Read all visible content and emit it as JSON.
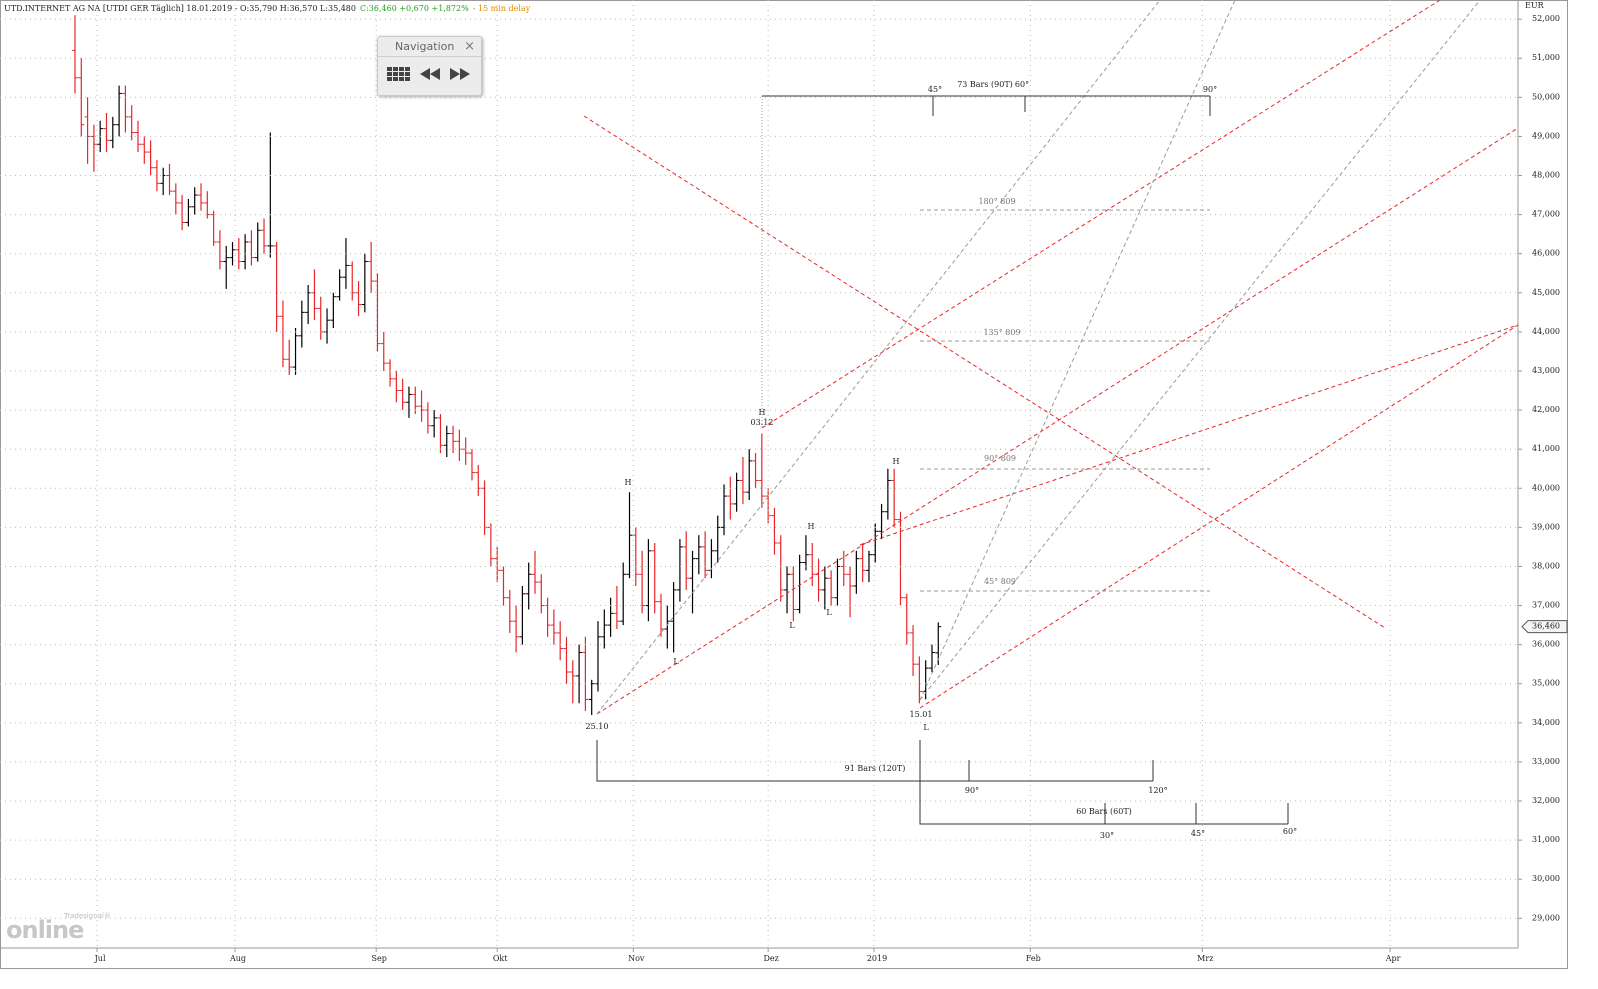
{
  "chart_data": {
    "type": "ohlc",
    "header": {
      "symbol": "UTD.INTERNET AG NA [UTDI GER Täglich] 18.01.2019 - O:35,790 H:36,570 L:35,480",
      "change": "C:36,460 +0,670 +1,872%",
      "delay": "- 15 min delay"
    },
    "y_unit": "EUR",
    "up_color": "#000000",
    "down_color": "#e8262a",
    "grid": true,
    "last_price": {
      "value": 36.46,
      "label": "36,460"
    },
    "xlim": [
      -11.9,
      229
    ],
    "xticks": [
      {
        "value": 3.5,
        "label": "Jul"
      },
      {
        "value": 25.4,
        "label": "Aug"
      },
      {
        "value": 47.8,
        "label": "Sep"
      },
      {
        "value": 67,
        "label": "Okt"
      },
      {
        "value": 88.6,
        "label": "Nov"
      },
      {
        "value": 110,
        "label": "Dez"
      },
      {
        "value": 126.8,
        "label": "2019"
      },
      {
        "value": 151.6,
        "label": "Feb"
      },
      {
        "value": 178.9,
        "label": "Mrz"
      },
      {
        "value": 208.7,
        "label": "Apr"
      }
    ],
    "ylim": [
      28.24,
      52.49
    ],
    "yticks": [
      {
        "value": 29,
        "label": "29,000"
      },
      {
        "value": 30,
        "label": "30,000"
      },
      {
        "value": 31,
        "label": "31,000"
      },
      {
        "value": 32,
        "label": "32,000"
      },
      {
        "value": 33,
        "label": "33,000"
      },
      {
        "value": 34,
        "label": "34,000"
      },
      {
        "value": 35,
        "label": "35,000"
      },
      {
        "value": 36,
        "label": "36,000"
      },
      {
        "value": 37,
        "label": "37,000"
      },
      {
        "value": 38,
        "label": "38,000"
      },
      {
        "value": 39,
        "label": "39,000"
      },
      {
        "value": 40,
        "label": "40,000"
      },
      {
        "value": 41,
        "label": "41,000"
      },
      {
        "value": 42,
        "label": "42,000"
      },
      {
        "value": 43,
        "label": "43,000"
      },
      {
        "value": 44,
        "label": "44,000"
      },
      {
        "value": 45,
        "label": "45,000"
      },
      {
        "value": 46,
        "label": "46,000"
      },
      {
        "value": 47,
        "label": "47,000"
      },
      {
        "value": 48,
        "label": "48,000"
      },
      {
        "value": 49,
        "label": "49,000"
      },
      {
        "value": 50,
        "label": "50,000"
      },
      {
        "value": 51,
        "label": "51,000"
      },
      {
        "value": 52,
        "label": "52,000"
      }
    ],
    "ohlc": [
      [
        51.2,
        52.1,
        50.1,
        50.5
      ],
      [
        50.5,
        51.0,
        49.0,
        49.3
      ],
      [
        49.5,
        50.0,
        48.3,
        49.0
      ],
      [
        49.0,
        49.3,
        48.1,
        48.8
      ],
      [
        48.8,
        49.4,
        48.6,
        49.2
      ],
      [
        49.2,
        49.6,
        48.6,
        48.9
      ],
      [
        48.9,
        49.5,
        48.7,
        49.3
      ],
      [
        49.3,
        50.3,
        49.0,
        50.1
      ],
      [
        50.1,
        50.3,
        49.1,
        49.5
      ],
      [
        49.5,
        49.8,
        48.9,
        49.1
      ],
      [
        49.1,
        49.4,
        48.6,
        48.8
      ],
      [
        48.8,
        49.0,
        48.3,
        48.6
      ],
      [
        48.6,
        48.9,
        48.0,
        48.2
      ],
      [
        48.2,
        48.4,
        47.6,
        47.8
      ],
      [
        47.8,
        48.2,
        47.5,
        48.0
      ],
      [
        48.0,
        48.3,
        47.5,
        47.6
      ],
      [
        47.6,
        47.8,
        47.0,
        47.3
      ],
      [
        47.3,
        47.5,
        46.6,
        46.8
      ],
      [
        46.8,
        47.4,
        46.7,
        47.2
      ],
      [
        47.2,
        47.7,
        47.0,
        47.5
      ],
      [
        47.5,
        47.8,
        47.1,
        47.3
      ],
      [
        47.3,
        47.6,
        46.9,
        47.0
      ],
      [
        47.0,
        47.1,
        46.2,
        46.3
      ],
      [
        46.3,
        46.6,
        45.6,
        45.8
      ],
      [
        45.8,
        46.2,
        45.1,
        45.9
      ],
      [
        45.9,
        46.3,
        45.7,
        46.1
      ],
      [
        46.1,
        46.4,
        45.6,
        45.8
      ],
      [
        45.8,
        46.5,
        45.6,
        46.3
      ],
      [
        46.3,
        46.6,
        45.7,
        45.9
      ],
      [
        45.9,
        46.8,
        45.8,
        46.6
      ],
      [
        46.6,
        46.9,
        46.0,
        46.2
      ],
      [
        46.2,
        49.1,
        45.9,
        46.2
      ],
      [
        46.2,
        46.3,
        44.0,
        44.4
      ],
      [
        44.4,
        44.8,
        43.1,
        43.3
      ],
      [
        43.3,
        43.8,
        42.9,
        43.1
      ],
      [
        43.1,
        44.1,
        42.9,
        43.9
      ],
      [
        43.9,
        44.8,
        43.6,
        44.5
      ],
      [
        44.5,
        45.2,
        44.2,
        45.0
      ],
      [
        45.0,
        45.6,
        44.3,
        44.6
      ],
      [
        44.6,
        44.9,
        43.8,
        44.0
      ],
      [
        44.0,
        44.6,
        43.7,
        44.3
      ],
      [
        44.3,
        45.0,
        44.1,
        44.9
      ],
      [
        44.9,
        45.6,
        44.8,
        45.4
      ],
      [
        45.4,
        46.4,
        45.1,
        45.7
      ],
      [
        45.7,
        45.8,
        44.8,
        45.0
      ],
      [
        45.0,
        45.3,
        44.4,
        44.7
      ],
      [
        44.7,
        46.0,
        44.5,
        45.8
      ],
      [
        45.8,
        46.3,
        45.0,
        45.3
      ],
      [
        45.3,
        45.5,
        43.5,
        43.7
      ],
      [
        43.7,
        44.0,
        43.0,
        43.2
      ],
      [
        43.2,
        43.3,
        42.6,
        42.8
      ],
      [
        42.8,
        43.0,
        42.2,
        42.5
      ],
      [
        42.5,
        42.8,
        42.0,
        42.2
      ],
      [
        42.2,
        42.6,
        41.8,
        42.4
      ],
      [
        42.4,
        42.6,
        41.9,
        42.1
      ],
      [
        42.1,
        42.5,
        41.7,
        42.0
      ],
      [
        42.0,
        42.2,
        41.4,
        41.6
      ],
      [
        41.6,
        42.0,
        41.3,
        41.8
      ],
      [
        41.8,
        41.9,
        40.9,
        41.1
      ],
      [
        41.1,
        41.6,
        40.8,
        41.4
      ],
      [
        41.4,
        41.6,
        40.9,
        41.2
      ],
      [
        41.2,
        41.5,
        40.7,
        41.0
      ],
      [
        41.0,
        41.3,
        40.6,
        40.9
      ],
      [
        40.9,
        41.0,
        40.2,
        40.4
      ],
      [
        40.4,
        40.6,
        39.8,
        40.0
      ],
      [
        40.0,
        40.2,
        38.8,
        39.0
      ],
      [
        39.0,
        39.1,
        38.0,
        38.2
      ],
      [
        38.2,
        38.5,
        37.6,
        37.9
      ],
      [
        37.9,
        38.0,
        37.0,
        37.2
      ],
      [
        37.2,
        37.4,
        36.3,
        36.6
      ],
      [
        36.6,
        37.0,
        35.8,
        36.2
      ],
      [
        36.2,
        37.5,
        36.0,
        37.3
      ],
      [
        37.3,
        38.1,
        36.9,
        37.8
      ],
      [
        37.8,
        38.4,
        37.3,
        37.6
      ],
      [
        37.6,
        37.8,
        36.8,
        37.0
      ],
      [
        37.0,
        37.2,
        36.2,
        36.5
      ],
      [
        36.5,
        36.9,
        36.0,
        36.3
      ],
      [
        36.3,
        36.6,
        35.6,
        35.9
      ],
      [
        35.9,
        36.2,
        35.0,
        35.3
      ],
      [
        35.3,
        35.6,
        34.5,
        35.2
      ],
      [
        35.2,
        36.0,
        34.5,
        35.8
      ],
      [
        35.8,
        36.2,
        34.3,
        34.6
      ],
      [
        34.6,
        35.1,
        34.2,
        35.0
      ],
      [
        35.0,
        36.6,
        34.8,
        36.2
      ],
      [
        36.2,
        36.9,
        35.9,
        36.5
      ],
      [
        36.5,
        37.2,
        36.2,
        36.8
      ],
      [
        36.8,
        37.5,
        36.4,
        36.6
      ],
      [
        36.6,
        38.1,
        36.5,
        37.8
      ],
      [
        37.8,
        39.9,
        37.7,
        38.8
      ],
      [
        38.8,
        39.0,
        37.5,
        37.8
      ],
      [
        37.8,
        38.4,
        36.8,
        37.0
      ],
      [
        37.0,
        38.7,
        36.6,
        38.4
      ],
      [
        38.4,
        38.6,
        36.8,
        37.1
      ],
      [
        37.1,
        37.3,
        36.2,
        36.4
      ],
      [
        36.4,
        37.0,
        35.9,
        36.6
      ],
      [
        36.6,
        37.6,
        35.8,
        37.4
      ],
      [
        37.4,
        38.7,
        37.1,
        38.5
      ],
      [
        38.5,
        38.9,
        37.4,
        37.7
      ],
      [
        37.7,
        38.4,
        36.8,
        38.2
      ],
      [
        38.2,
        38.8,
        37.8,
        38.5
      ],
      [
        38.5,
        38.9,
        37.7,
        37.9
      ],
      [
        37.9,
        38.7,
        37.7,
        38.4
      ],
      [
        38.4,
        39.3,
        38.1,
        39.0
      ],
      [
        39.0,
        40.1,
        38.8,
        39.8
      ],
      [
        39.8,
        40.3,
        39.2,
        39.6
      ],
      [
        39.6,
        40.4,
        39.4,
        40.2
      ],
      [
        40.2,
        40.8,
        39.6,
        39.9
      ],
      [
        39.9,
        41.0,
        39.7,
        40.7
      ],
      [
        40.7,
        40.9,
        40.0,
        40.2
      ],
      [
        40.2,
        41.4,
        39.5,
        39.8
      ],
      [
        39.8,
        40.0,
        39.1,
        39.3
      ],
      [
        39.3,
        39.5,
        38.3,
        38.6
      ],
      [
        38.6,
        38.8,
        37.1,
        37.4
      ],
      [
        37.4,
        38.0,
        36.8,
        37.8
      ],
      [
        37.8,
        38.0,
        36.6,
        36.9
      ],
      [
        36.9,
        38.3,
        36.8,
        38.1
      ],
      [
        38.1,
        38.8,
        37.9,
        38.3
      ],
      [
        38.3,
        38.6,
        37.5,
        37.8
      ],
      [
        37.8,
        38.2,
        37.1,
        37.4
      ],
      [
        37.4,
        38.0,
        36.9,
        37.7
      ],
      [
        37.7,
        37.9,
        37.0,
        37.2
      ],
      [
        37.2,
        38.2,
        37.0,
        38.0
      ],
      [
        38.0,
        38.4,
        37.5,
        37.8
      ],
      [
        37.8,
        38.0,
        36.7,
        37.5
      ],
      [
        37.5,
        38.4,
        37.3,
        38.2
      ],
      [
        38.2,
        38.6,
        37.6,
        37.9
      ],
      [
        37.9,
        38.4,
        37.6,
        38.3
      ],
      [
        38.3,
        39.1,
        38.1,
        38.9
      ],
      [
        38.9,
        39.6,
        38.7,
        39.4
      ],
      [
        39.4,
        40.5,
        39.2,
        40.2
      ],
      [
        40.2,
        40.5,
        39.0,
        39.2
      ],
      [
        39.2,
        39.4,
        37.0,
        37.2
      ],
      [
        37.2,
        37.3,
        36.0,
        36.3
      ],
      [
        36.3,
        36.5,
        35.2,
        35.5
      ],
      [
        35.5,
        35.7,
        34.5,
        34.8
      ],
      [
        34.8,
        35.6,
        34.6,
        35.4
      ],
      [
        35.4,
        36.0,
        35.3,
        35.8
      ],
      [
        35.79,
        36.57,
        35.48,
        36.46
      ]
    ],
    "pivot_labels": [
      "H",
      "L",
      "H",
      "03.12",
      "H",
      "L",
      "L",
      "H",
      "L",
      "25.10",
      "15.01"
    ],
    "gann_labels": [
      "73 Bars (90T)",
      "45°",
      "60°",
      "90°",
      "180° 809",
      "135° 809",
      "90° 809",
      "45° 809",
      "91 Bars (120T)",
      "90°",
      "120°",
      "60 Bars (60T)",
      "30°",
      "45°",
      "60°"
    ]
  },
  "navigation": {
    "title": "Navigation",
    "close": "×"
  },
  "logo": {
    "small": "Tradesignal®",
    "big": "online"
  }
}
